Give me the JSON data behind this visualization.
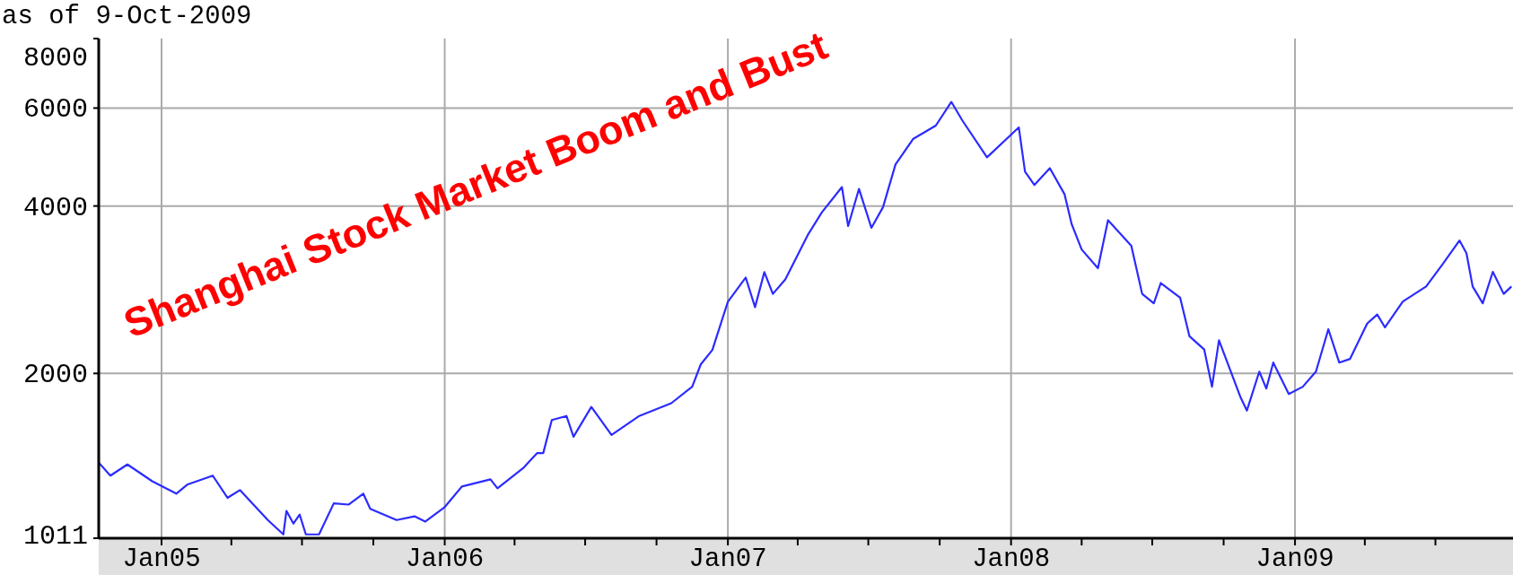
{
  "chart_data": {
    "type": "line",
    "subtitle": "as of 9-Oct-2009",
    "annotations": [
      "Shanghai Stock Market Boom and Bust"
    ],
    "x": [
      "2004-10-12",
      "2004-10-27",
      "2004-11-18",
      "2004-12-20",
      "2005-01-20",
      "2005-02-03",
      "2005-03-08",
      "2005-03-27",
      "2005-04-12",
      "2005-05-18",
      "2005-06-07",
      "2005-06-11",
      "2005-06-20",
      "2005-06-28",
      "2005-07-06",
      "2005-07-23",
      "2005-08-11",
      "2005-08-30",
      "2005-09-18",
      "2005-09-27",
      "2005-10-31",
      "2005-11-23",
      "2005-12-07",
      "2006-01-01",
      "2006-01-23",
      "2006-03-01",
      "2006-03-10",
      "2006-04-12",
      "2006-04-30",
      "2006-05-08",
      "2006-05-19",
      "2006-06-07",
      "2006-06-16",
      "2006-07-09",
      "2006-08-04",
      "2006-09-08",
      "2006-10-20",
      "2006-11-16",
      "2006-11-27",
      "2006-12-12",
      "2007-01-01",
      "2007-01-24",
      "2007-02-05",
      "2007-02-17",
      "2007-02-28",
      "2007-03-16",
      "2007-04-14",
      "2007-05-02",
      "2007-05-28",
      "2007-06-05",
      "2007-06-19",
      "2007-07-05",
      "2007-07-20",
      "2007-08-05",
      "2007-08-28",
      "2007-09-26",
      "2007-10-16",
      "2007-10-30",
      "2007-12-01",
      "2008-01-11",
      "2008-01-19",
      "2008-01-31",
      "2008-02-20",
      "2008-03-10",
      "2008-03-19",
      "2008-04-01",
      "2008-04-22",
      "2008-05-05",
      "2008-06-04",
      "2008-06-18",
      "2008-07-03",
      "2008-07-12",
      "2008-08-06",
      "2008-08-18",
      "2008-09-06",
      "2008-09-16",
      "2008-09-25",
      "2008-10-23",
      "2008-10-31",
      "2008-11-16",
      "2008-11-25",
      "2008-12-04",
      "2008-12-24",
      "2009-01-11",
      "2009-01-28",
      "2009-02-13",
      "2009-02-27",
      "2009-03-13",
      "2009-04-04",
      "2009-04-17",
      "2009-04-27",
      "2009-05-20",
      "2009-06-19",
      "2009-07-10",
      "2009-08-01",
      "2009-08-10",
      "2009-08-18",
      "2009-08-31",
      "2009-09-13",
      "2009-09-27",
      "2009-10-07"
    ],
    "values": [
      1383,
      1310,
      1372,
      1280,
      1216,
      1262,
      1310,
      1195,
      1234,
      1090,
      1027,
      1132,
      1074,
      1115,
      1027,
      1027,
      1168,
      1162,
      1216,
      1142,
      1090,
      1107,
      1083,
      1150,
      1252,
      1290,
      1243,
      1351,
      1438,
      1438,
      1649,
      1677,
      1539,
      1741,
      1550,
      1675,
      1768,
      1893,
      2076,
      2204,
      2692,
      2974,
      2632,
      3042,
      2780,
      2952,
      3548,
      3894,
      4326,
      3682,
      4294,
      3654,
      3982,
      4750,
      5284,
      5580,
      6156,
      5706,
      4894,
      5538,
      4610,
      4364,
      4678,
      4198,
      3716,
      3341,
      3092,
      3772,
      3392,
      2780,
      2674,
      2908,
      2736,
      2332,
      2208,
      1893,
      2294,
      1809,
      1715,
      2015,
      1879,
      2092,
      1837,
      1893,
      2015,
      2402,
      2092,
      2124,
      2458,
      2552,
      2420,
      2694,
      2866,
      3140,
      3468,
      3290,
      2866,
      2674,
      3046,
      2780,
      2866
    ],
    "color": "#2b2bff",
    "log": true,
    "grid": true,
    "marker": "none",
    "line_style": "solid",
    "xlim": [
      "2004-10-12",
      "2009-10-09"
    ],
    "xticks": [
      {
        "value": "2005-01-01",
        "label": "Jan05"
      },
      {
        "value": "2005-04-01",
        "label": null
      },
      {
        "value": "2005-07-01",
        "label": null
      },
      {
        "value": "2005-10-01",
        "label": null
      },
      {
        "value": "2006-01-01",
        "label": "Jan06"
      },
      {
        "value": "2006-04-01",
        "label": null
      },
      {
        "value": "2006-07-01",
        "label": null
      },
      {
        "value": "2006-10-01",
        "label": null
      },
      {
        "value": "2007-01-01",
        "label": "Jan07"
      },
      {
        "value": "2007-04-01",
        "label": null
      },
      {
        "value": "2007-07-01",
        "label": null
      },
      {
        "value": "2007-10-01",
        "label": null
      },
      {
        "value": "2008-01-01",
        "label": "Jan08"
      },
      {
        "value": "2008-04-01",
        "label": null
      },
      {
        "value": "2008-07-01",
        "label": null
      },
      {
        "value": "2008-10-01",
        "label": null
      },
      {
        "value": "2009-01-01",
        "label": "Jan09"
      },
      {
        "value": "2009-04-01",
        "label": null
      },
      {
        "value": "2009-07-01",
        "label": null
      }
    ],
    "ylim": [
      1011,
      8000
    ],
    "yticks": [
      1011,
      2000,
      4000,
      6000,
      8000
    ]
  }
}
